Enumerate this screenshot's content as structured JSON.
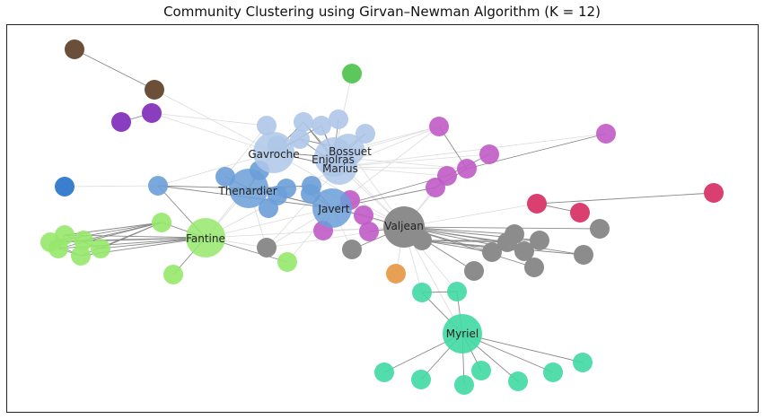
{
  "title": "Community Clustering using Girvan–Newman Algorithm (K = 12)",
  "communities": {
    "light_blue": "#aec7e8",
    "blue": "#6b9fd8",
    "dark_blue": "#3a7fd0",
    "gray": "#8c8c8c",
    "teal": "#40d8a3",
    "lime": "#96e86b",
    "green": "#5cc85c",
    "purple": "#8a3ebf",
    "magenta": "#c05bc7",
    "crimson": "#d9406f",
    "brown": "#6b4f38",
    "orange": "#e8a055"
  },
  "node_labels": {
    "gavroche": "Gavroche",
    "enjolras": "Enjolras",
    "bossuet": "Bossuet",
    "marius": "Marius",
    "thenardier": "Thenardier",
    "javert": "Javert",
    "valjean": "Valjean",
    "fantine": "Fantine",
    "myriel": "Myriel"
  }
}
